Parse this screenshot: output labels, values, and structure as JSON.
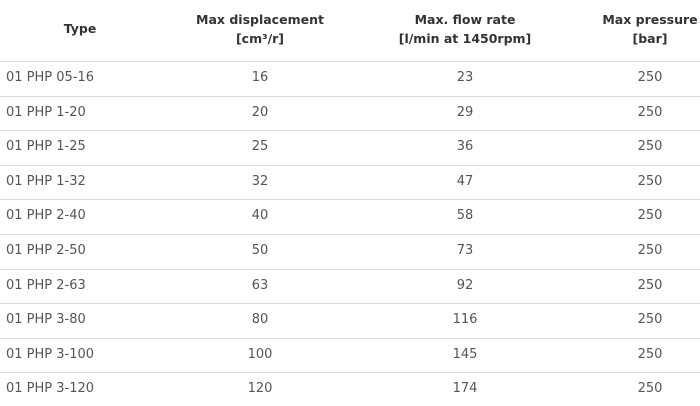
{
  "table": {
    "header": [
      [
        "Type"
      ],
      [
        "Max displacement",
        "[cm³/r]"
      ],
      [
        "Max. flow rate",
        "[l/min at 1450rpm]"
      ],
      [
        "Max pressure",
        "[bar]"
      ]
    ],
    "rows": [
      [
        "01 PHP 05-16",
        16,
        23,
        250
      ],
      [
        "01 PHP 1-20",
        20,
        29,
        250
      ],
      [
        "01 PHP 1-25",
        25,
        36,
        250
      ],
      [
        "01 PHP 1-32",
        32,
        47,
        250
      ],
      [
        "01 PHP 2-40",
        40,
        58,
        250
      ],
      [
        "01 PHP 2-50",
        50,
        73,
        250
      ],
      [
        "01 PHP 2-63",
        63,
        92,
        250
      ],
      [
        "01 PHP 3-80",
        80,
        116,
        250
      ],
      [
        "01 PHP 3-100",
        100,
        145,
        250
      ],
      [
        "01 PHP 3-120",
        120,
        174,
        250
      ]
    ]
  }
}
